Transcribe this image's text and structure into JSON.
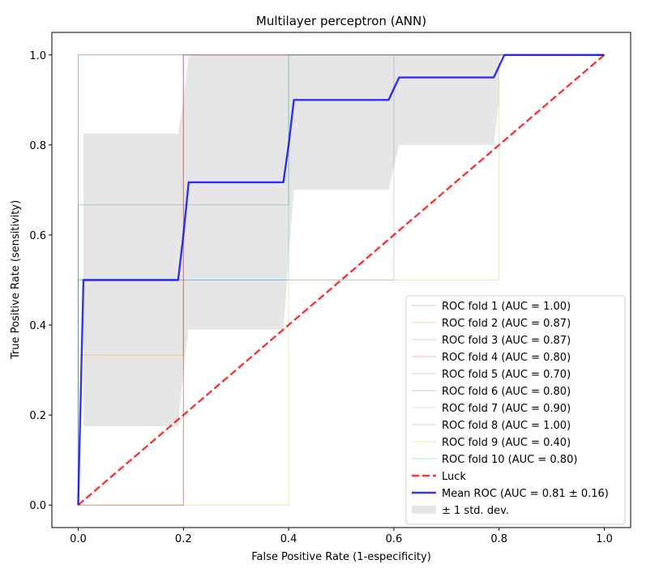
{
  "chart_data": {
    "type": "line",
    "title": "Multilayer perceptron (ANN)",
    "xlabel": "False Positive Rate (1-especificity)",
    "ylabel": "True Positive Rate (sensitivity)",
    "xlim": [
      -0.05,
      1.05
    ],
    "ylim": [
      -0.05,
      1.05
    ],
    "xticks": [
      0.0,
      0.2,
      0.4,
      0.6,
      0.8,
      1.0
    ],
    "yticks": [
      0.0,
      0.2,
      0.4,
      0.6,
      0.8,
      1.0
    ],
    "xtick_labels": [
      "0.0",
      "0.2",
      "0.4",
      "0.6",
      "0.8",
      "1.0"
    ],
    "ytick_labels": [
      "0.0",
      "0.2",
      "0.4",
      "0.6",
      "0.8",
      "1.0"
    ],
    "grid": false,
    "legend_position": "lower-right",
    "series": [
      {
        "name": "ROC fold 1 (AUC = 1.00)",
        "color": "#1f77b4",
        "x": [
          0,
          0,
          0,
          1
        ],
        "y": [
          0,
          0.5,
          1,
          1
        ]
      },
      {
        "name": "ROC fold 2 (AUC = 0.87)",
        "color": "#ff7f0e",
        "x": [
          0,
          0,
          0.2,
          0.2,
          0.4,
          1
        ],
        "y": [
          0,
          0.333,
          0.333,
          1,
          1,
          1
        ]
      },
      {
        "name": "ROC fold 3 (AUC = 0.87)",
        "color": "#2ca02c",
        "x": [
          0,
          0,
          0,
          0.4,
          0.4,
          1
        ],
        "y": [
          0,
          0.333,
          0.667,
          0.667,
          1,
          1
        ]
      },
      {
        "name": "ROC fold 4 (AUC = 0.80)",
        "color": "#d62728",
        "x": [
          0,
          0.2,
          0.2,
          1
        ],
        "y": [
          0,
          0,
          1,
          1
        ]
      },
      {
        "name": "ROC fold 5 (AUC = 0.70)",
        "color": "#9467bd",
        "x": [
          0,
          0,
          0.6,
          0.6,
          1
        ],
        "y": [
          0,
          0.5,
          0.5,
          1,
          1
        ]
      },
      {
        "name": "ROC fold 6 (AUC = 0.80)",
        "color": "#8c564b",
        "x": [
          0,
          0.2,
          0.2,
          1
        ],
        "y": [
          0,
          0,
          1,
          1
        ]
      },
      {
        "name": "ROC fold 7 (AUC = 0.90)",
        "color": "#e377c2",
        "x": [
          0,
          0,
          0.2,
          0.2,
          1
        ],
        "y": [
          0,
          0.5,
          0.5,
          1,
          1
        ]
      },
      {
        "name": "ROC fold 8 (AUC = 1.00)",
        "color": "#7f7f7f",
        "x": [
          0,
          0,
          1
        ],
        "y": [
          0,
          1,
          1
        ]
      },
      {
        "name": "ROC fold 9 (AUC = 0.40)",
        "color": "#bcbd22",
        "x": [
          0,
          0.4,
          0.4,
          0.8,
          0.8,
          1
        ],
        "y": [
          0,
          0,
          0.5,
          0.5,
          1,
          1
        ]
      },
      {
        "name": "ROC fold 10 (AUC = 0.80)",
        "color": "#17becf",
        "x": [
          0,
          0,
          0.4,
          0.4,
          1
        ],
        "y": [
          0,
          0.5,
          0.5,
          1,
          1
        ]
      }
    ],
    "luck": {
      "name": "Luck",
      "color": "#ff0000",
      "x": [
        0,
        1
      ],
      "y": [
        0,
        1
      ]
    },
    "mean": {
      "name": "Mean ROC (AUC = 0.81 ± 0.16)",
      "color": "#0000ff",
      "x": [
        0,
        0.01,
        0.19,
        0.2,
        0.21,
        0.39,
        0.4,
        0.41,
        0.59,
        0.6,
        0.61,
        0.79,
        0.8,
        0.81,
        1.0
      ],
      "y": [
        0,
        0.5,
        0.5,
        0.6,
        0.717,
        0.717,
        0.8,
        0.9,
        0.9,
        0.925,
        0.95,
        0.95,
        0.975,
        1.0,
        1.0
      ]
    },
    "std_band": {
      "name": "± 1 std. dev.",
      "color": "#808080",
      "x": [
        0.01,
        0.19,
        0.2,
        0.21,
        0.39,
        0.4,
        0.41,
        0.59,
        0.6,
        0.61,
        0.79,
        0.8
      ],
      "upper": [
        0.825,
        0.825,
        0.9,
        1.0,
        1.0,
        1.0,
        1.0,
        1.0,
        1.0,
        1.0,
        1.0,
        1.0
      ],
      "lower": [
        0.175,
        0.175,
        0.3,
        0.39,
        0.39,
        0.55,
        0.7,
        0.7,
        0.75,
        0.8,
        0.8,
        0.9
      ]
    }
  }
}
